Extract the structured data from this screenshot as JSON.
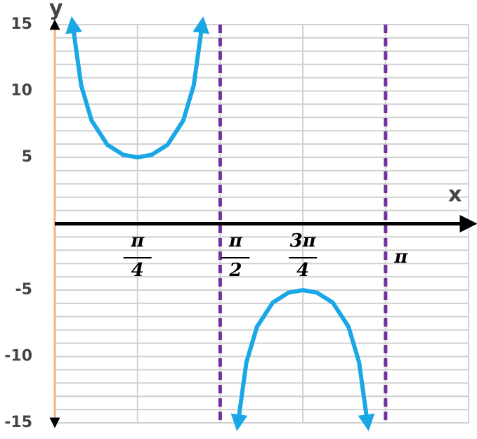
{
  "chart_data": {
    "type": "line",
    "x_label": "x",
    "y_label": "y",
    "xlim": [
      0,
      3.93
    ],
    "ylim": [
      -15,
      15
    ],
    "xticks": [
      {
        "value": 0.7854,
        "label": "π/4"
      },
      {
        "value": 1.5708,
        "label": "π/2"
      },
      {
        "value": 2.3562,
        "label": "3π/4"
      },
      {
        "value": 3.1416,
        "label": "π"
      }
    ],
    "yticks": [
      15,
      10,
      5,
      -5,
      -10,
      -15
    ],
    "ygrid": [
      -15,
      -14,
      -13,
      -12,
      -11,
      -10,
      -9,
      -8,
      -7,
      -6,
      -5,
      -4,
      -3,
      -2,
      -1,
      0,
      1,
      2,
      3,
      4,
      5,
      6,
      7,
      8,
      9,
      10,
      11,
      12,
      13,
      14,
      15
    ],
    "grid": true,
    "asymptotes": [
      1.5708,
      3.1416
    ],
    "asymptote_color": "#7030a0",
    "x": [
      0.17,
      0.25,
      0.35,
      0.5,
      0.65,
      0.785,
      0.92,
      1.07,
      1.22,
      1.32,
      1.4,
      null,
      1.74,
      1.82,
      1.92,
      2.07,
      2.22,
      2.356,
      2.49,
      2.64,
      2.79,
      2.89,
      2.97
    ],
    "series": [
      {
        "color": "#1aa7e6",
        "values": [
          15.0,
          10.43,
          7.76,
          5.94,
          5.19,
          5,
          5.19,
          5.94,
          7.76,
          10.43,
          15.0,
          null,
          -15.0,
          -10.43,
          -7.76,
          -5.94,
          -5.19,
          -5,
          -5.19,
          -5.94,
          -7.76,
          -10.43,
          -15.0
        ]
      }
    ]
  }
}
